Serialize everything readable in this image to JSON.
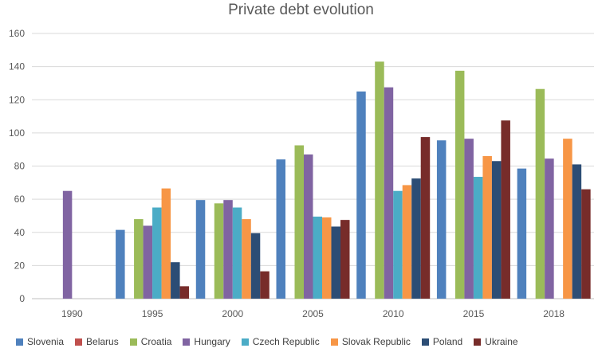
{
  "chart_data": {
    "type": "bar",
    "title": "Private debt evolution",
    "xlabel": "",
    "ylabel": "",
    "ylim": [
      0,
      160
    ],
    "yticks": [
      "0",
      "20",
      "40",
      "60",
      "80",
      "100",
      "120",
      "140",
      "160"
    ],
    "grid": true,
    "legend_position": "bottom",
    "categories": [
      "1990",
      "1995",
      "2000",
      "2005",
      "2010",
      "2015",
      "2018"
    ],
    "series": [
      {
        "name": "Slovenia",
        "color": "#4f81bd",
        "values": [
          null,
          41.5,
          59.5,
          84,
          125,
          95.5,
          78.5
        ]
      },
      {
        "name": "Belarus",
        "color": "#c0504d",
        "values": [
          null,
          null,
          null,
          null,
          null,
          null,
          null
        ]
      },
      {
        "name": "Croatia",
        "color": "#9bbb59",
        "values": [
          null,
          48,
          57.5,
          92.5,
          143,
          137.5,
          126.5
        ]
      },
      {
        "name": "Hungary",
        "color": "#8064a2",
        "values": [
          65,
          44,
          59.5,
          87,
          127.5,
          96.5,
          84.5
        ]
      },
      {
        "name": "Czech Republic",
        "color": "#4bacc6",
        "values": [
          null,
          55,
          55,
          49.5,
          65,
          73.5,
          null
        ]
      },
      {
        "name": "Slovak Republic",
        "color": "#f79646",
        "values": [
          null,
          66.5,
          48,
          49,
          68.5,
          86,
          96.5
        ]
      },
      {
        "name": "Poland",
        "color": "#2c4d75",
        "values": [
          null,
          22,
          39.5,
          43.5,
          72.5,
          83,
          81
        ]
      },
      {
        "name": "Ukraine",
        "color": "#772c2a",
        "values": [
          null,
          7.5,
          16.5,
          47.5,
          97.5,
          107.5,
          66
        ]
      }
    ]
  }
}
